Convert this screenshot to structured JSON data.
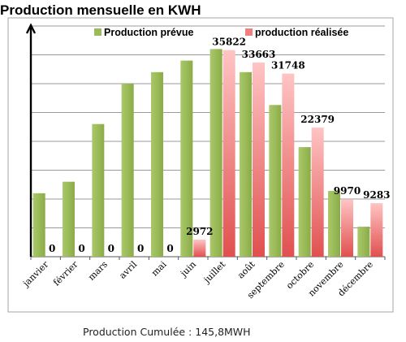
{
  "chart_data": {
    "type": "bar",
    "title": "Production mensuelle en KWH",
    "categories": [
      "janvier",
      "février",
      "mars",
      "avril",
      "mai",
      "juin",
      "juillet",
      "août",
      "septembre",
      "octobre",
      "novembre",
      "décembre"
    ],
    "series": [
      {
        "name": "Production prévue",
        "color": "#9bbb59",
        "values": [
          11000,
          13000,
          23000,
          30000,
          32000,
          34000,
          36000,
          32000,
          26300,
          19000,
          11400,
          5200
        ]
      },
      {
        "name": "production réalisée",
        "color": "#f07f7f",
        "values": [
          0,
          0,
          0,
          0,
          0,
          2972,
          35822,
          33663,
          31748,
          22379,
          9970,
          9283
        ]
      }
    ],
    "data_labels": [
      "0",
      "0",
      "0",
      "0",
      "0",
      "2972",
      "35822",
      "33663",
      "31748",
      "22379",
      "9970",
      "9283"
    ],
    "ylim": [
      0,
      40000
    ],
    "grid": true,
    "legend_position": "top",
    "xlabel": "",
    "ylabel": ""
  },
  "caption": "Production Cumulée : 145,8MWH"
}
